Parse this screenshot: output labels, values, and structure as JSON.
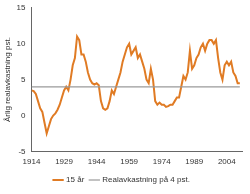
{
  "chart_data": {
    "type": "line",
    "y_label": "Årlig realavkastning pst.",
    "x": [
      1914,
      1915,
      1916,
      1917,
      1918,
      1919,
      1920,
      1921,
      1922,
      1923,
      1924,
      1925,
      1926,
      1927,
      1928,
      1929,
      1930,
      1931,
      1932,
      1933,
      1934,
      1935,
      1936,
      1937,
      1938,
      1939,
      1940,
      1941,
      1942,
      1943,
      1944,
      1945,
      1946,
      1947,
      1948,
      1949,
      1950,
      1951,
      1952,
      1953,
      1954,
      1955,
      1956,
      1957,
      1958,
      1959,
      1960,
      1961,
      1962,
      1963,
      1964,
      1965,
      1966,
      1967,
      1968,
      1969,
      1970,
      1971,
      1972,
      1973,
      1974,
      1975,
      1976,
      1977,
      1978,
      1979,
      1980,
      1981,
      1982,
      1983,
      1984,
      1985,
      1986,
      1987,
      1988,
      1989,
      1990,
      1991,
      1992,
      1993,
      1994,
      1995,
      1996,
      1997,
      1998,
      1999,
      2000,
      2001,
      2002,
      2003,
      2004,
      2005,
      2006,
      2007,
      2008,
      2009,
      2010
    ],
    "series": [
      {
        "name": "15 år",
        "color": "#e07b24",
        "line_style": "solid",
        "values": [
          3.5,
          3.4,
          3.0,
          2.0,
          1.0,
          0.5,
          -1.0,
          -2.5,
          -1.5,
          -0.5,
          0.0,
          0.3,
          0.8,
          1.5,
          2.5,
          3.5,
          4.0,
          3.5,
          5.0,
          7.0,
          8.0,
          11.0,
          10.5,
          8.5,
          8.5,
          7.5,
          6.0,
          5.0,
          4.5,
          4.3,
          4.5,
          4.2,
          2.0,
          1.0,
          0.8,
          1.0,
          2.0,
          3.5,
          3.0,
          4.0,
          5.0,
          6.0,
          7.5,
          8.5,
          9.5,
          10.0,
          8.5,
          9.0,
          9.5,
          8.0,
          8.5,
          7.5,
          6.5,
          5.0,
          4.5,
          6.5,
          5.0,
          2.0,
          1.5,
          1.8,
          1.5,
          1.5,
          1.2,
          1.3,
          1.5,
          1.5,
          2.0,
          2.5,
          2.5,
          4.0,
          5.5,
          5.0,
          6.0,
          9.0,
          6.5,
          7.0,
          8.0,
          8.5,
          9.5,
          10.0,
          9.0,
          10.0,
          10.5,
          10.5,
          10.0,
          10.5,
          8.0,
          6.0,
          5.0,
          7.0,
          7.5,
          7.0,
          7.5,
          6.0,
          5.5,
          4.5,
          4.5
        ]
      },
      {
        "name": "Realavkastning på 4 pst.",
        "color": "#9a9a9a",
        "line_style": "solid",
        "values": [
          4,
          4,
          4,
          4,
          4,
          4,
          4,
          4,
          4,
          4,
          4,
          4,
          4,
          4,
          4,
          4,
          4,
          4,
          4,
          4,
          4,
          4,
          4,
          4,
          4,
          4,
          4,
          4,
          4,
          4,
          4,
          4,
          4,
          4,
          4,
          4,
          4,
          4,
          4,
          4,
          4,
          4,
          4,
          4,
          4,
          4,
          4,
          4,
          4,
          4,
          4,
          4,
          4,
          4,
          4,
          4,
          4,
          4,
          4,
          4,
          4,
          4,
          4,
          4,
          4,
          4,
          4,
          4,
          4,
          4,
          4,
          4,
          4,
          4,
          4,
          4,
          4,
          4,
          4,
          4,
          4,
          4,
          4,
          4,
          4,
          4,
          4,
          4,
          4,
          4,
          4,
          4,
          4,
          4,
          4,
          4,
          4
        ]
      }
    ],
    "xlim": [
      1914,
      2011
    ],
    "xticks": [
      1914,
      1929,
      1944,
      1959,
      1974,
      1989,
      2004
    ],
    "ylim": [
      -5,
      15
    ],
    "yticks": [
      -5,
      0,
      5,
      10,
      15
    ],
    "grid": false,
    "legend": "bottom"
  }
}
